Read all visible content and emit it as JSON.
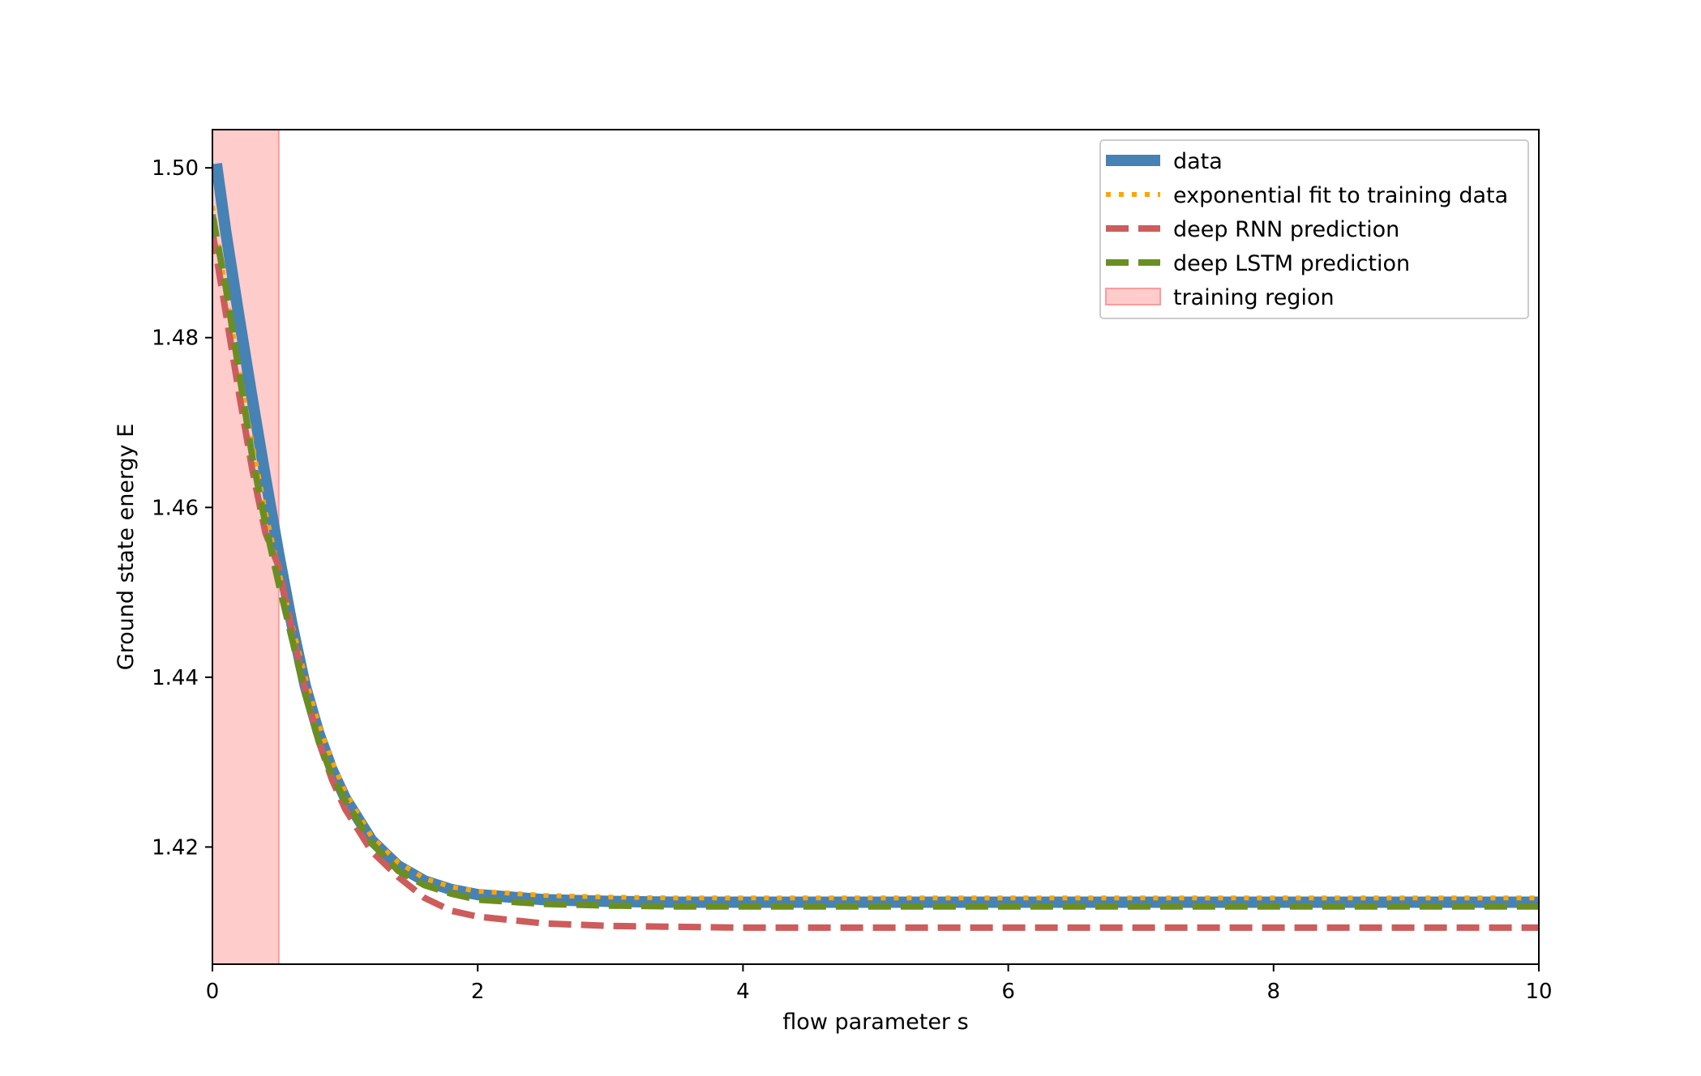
{
  "chart_data": {
    "type": "line",
    "title": "",
    "xlabel": "flow parameter s",
    "ylabel": "Ground state energy E",
    "xlim": [
      0,
      10
    ],
    "ylim": [
      1.4062,
      1.5045
    ],
    "xticks": [
      0,
      2,
      4,
      6,
      8,
      10
    ],
    "yticks": [
      1.42,
      1.44,
      1.46,
      1.48,
      1.5
    ],
    "xtick_labels": [
      "0",
      "2",
      "4",
      "6",
      "8",
      "10"
    ],
    "ytick_labels": [
      "1.42",
      "1.44",
      "1.46",
      "1.48",
      "1.50"
    ],
    "grid": false,
    "legend_position": "top-right",
    "shaded_regions": [
      {
        "name": "training region",
        "x_start": 0,
        "x_end": 0.5,
        "color": "#ffcccc",
        "edge_color": "#ff9a9a"
      }
    ],
    "series": [
      {
        "name": "data",
        "style": "solid",
        "color": "#4682b4",
        "x": [
          0.03,
          0.1,
          0.2,
          0.3,
          0.4,
          0.5,
          0.6,
          0.7,
          0.8,
          0.9,
          1.0,
          1.2,
          1.4,
          1.6,
          1.8,
          2.0,
          2.5,
          3.0,
          3.5,
          4.0,
          5.0,
          6.0,
          7.0,
          8.0,
          9.0,
          10.0
        ],
        "y": [
          1.5005,
          1.4925,
          1.4825,
          1.4728,
          1.4635,
          1.4545,
          1.4462,
          1.439,
          1.4335,
          1.4292,
          1.4258,
          1.4208,
          1.4178,
          1.416,
          1.415,
          1.4144,
          1.4138,
          1.4136,
          1.4135,
          1.4135,
          1.4135,
          1.4135,
          1.4135,
          1.4135,
          1.4135,
          1.4135
        ]
      },
      {
        "name": "exponential fit to training data",
        "style": "dotted",
        "color": "#ffa500",
        "x": [
          0.0,
          0.1,
          0.2,
          0.3,
          0.4,
          0.5,
          0.6,
          0.7,
          0.8,
          0.9,
          1.0,
          1.2,
          1.4,
          1.6,
          1.8,
          2.0,
          2.5,
          3.0,
          3.5,
          4.0,
          5.0,
          6.0,
          7.0,
          8.0,
          9.0,
          10.0
        ],
        "y": [
          1.4955,
          1.4855,
          1.4762,
          1.4675,
          1.4595,
          1.4525,
          1.4462,
          1.44,
          1.4345,
          1.4302,
          1.4265,
          1.4212,
          1.4182,
          1.4163,
          1.4153,
          1.4148,
          1.4143,
          1.4141,
          1.414,
          1.414,
          1.414,
          1.414,
          1.414,
          1.414,
          1.414,
          1.414
        ]
      },
      {
        "name": "deep RNN prediction",
        "style": "dashed",
        "color": "#cd5c5c",
        "x": [
          0.0,
          0.1,
          0.2,
          0.3,
          0.4,
          0.5,
          0.6,
          0.7,
          0.8,
          0.9,
          1.0,
          1.2,
          1.4,
          1.6,
          1.8,
          2.0,
          2.5,
          3.0,
          3.5,
          4.0,
          5.0,
          6.0,
          7.0,
          8.0,
          9.0,
          10.0
        ],
        "y": [
          1.4925,
          1.483,
          1.4735,
          1.4645,
          1.457,
          1.453,
          1.4455,
          1.4385,
          1.4325,
          1.428,
          1.4245,
          1.4195,
          1.4165,
          1.414,
          1.4125,
          1.4118,
          1.411,
          1.4107,
          1.4106,
          1.4105,
          1.4105,
          1.4105,
          1.4105,
          1.4105,
          1.4105,
          1.4105
        ]
      },
      {
        "name": "deep LSTM prediction",
        "style": "dashed",
        "color": "#6b8e23",
        "x": [
          0.0,
          0.1,
          0.2,
          0.3,
          0.4,
          0.5,
          0.6,
          0.7,
          0.8,
          0.9,
          1.0,
          1.2,
          1.4,
          1.6,
          1.8,
          2.0,
          2.5,
          3.0,
          3.5,
          4.0,
          5.0,
          6.0,
          7.0,
          8.0,
          9.0,
          10.0
        ],
        "y": [
          1.4945,
          1.486,
          1.476,
          1.466,
          1.458,
          1.451,
          1.4445,
          1.438,
          1.4325,
          1.4285,
          1.4255,
          1.4205,
          1.4172,
          1.4155,
          1.4145,
          1.4138,
          1.4133,
          1.4131,
          1.413,
          1.413,
          1.413,
          1.413,
          1.413,
          1.413,
          1.413,
          1.413
        ]
      }
    ]
  }
}
